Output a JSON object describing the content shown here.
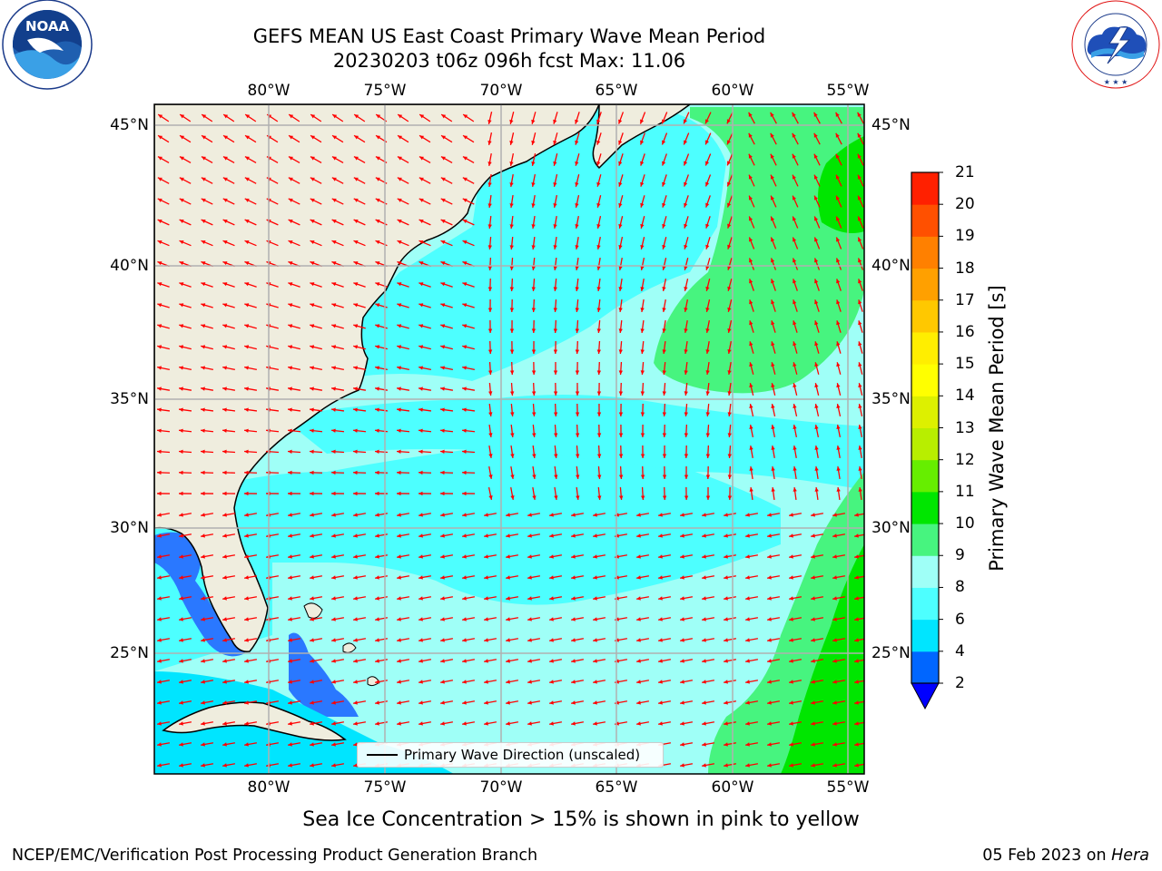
{
  "title": {
    "line1": "GEFS MEAN US East Coast Primary Wave Mean Period",
    "line2": "20230203 t06z 096h fcst   Max: 11.06"
  },
  "logos": {
    "left": {
      "text": "NOAA",
      "ring_text": "NATIONAL OCEANIC AND ATMOSPHERIC ADMINISTRATION · U.S. DEPARTMENT OF COMMERCE"
    },
    "right": {
      "ring_text": "NATIONAL WEATHER SERVICE"
    }
  },
  "map": {
    "lon_labels": [
      "80°W",
      "75°W",
      "70°W",
      "65°W",
      "60°W",
      "55°W"
    ],
    "lat_labels": [
      "45°N",
      "40°N",
      "35°N",
      "30°N",
      "25°N"
    ],
    "legend_label": "Primary Wave Direction (unscaled)",
    "arrow_color": "#ff0000",
    "land_color": "#efedde",
    "grid_color": "#b0b0b0"
  },
  "colorbar": {
    "label": "Primary Wave Mean Period [s]",
    "ticks": [
      "2",
      "4",
      "6",
      "8",
      "9",
      "10",
      "11",
      "12",
      "13",
      "14",
      "15",
      "16",
      "17",
      "18",
      "19",
      "20",
      "21"
    ],
    "colors": [
      "#0066ff",
      "#00e5ff",
      "#4dffff",
      "#9ffff7",
      "#47f47f",
      "#00e600",
      "#66ee00",
      "#b8ee00",
      "#ddf000",
      "#ffff00",
      "#ffee00",
      "#ffc800",
      "#ffa000",
      "#ff8000",
      "#ff5000",
      "#ff2000"
    ],
    "under_color": "#0000ff"
  },
  "note": "Sea Ice Concentration > 15% is shown in pink to yellow",
  "credits": {
    "left": "NCEP/EMC/Verification Post Processing Product Generation Branch",
    "date": "05 Feb 2023 on ",
    "machine": "Hera"
  }
}
